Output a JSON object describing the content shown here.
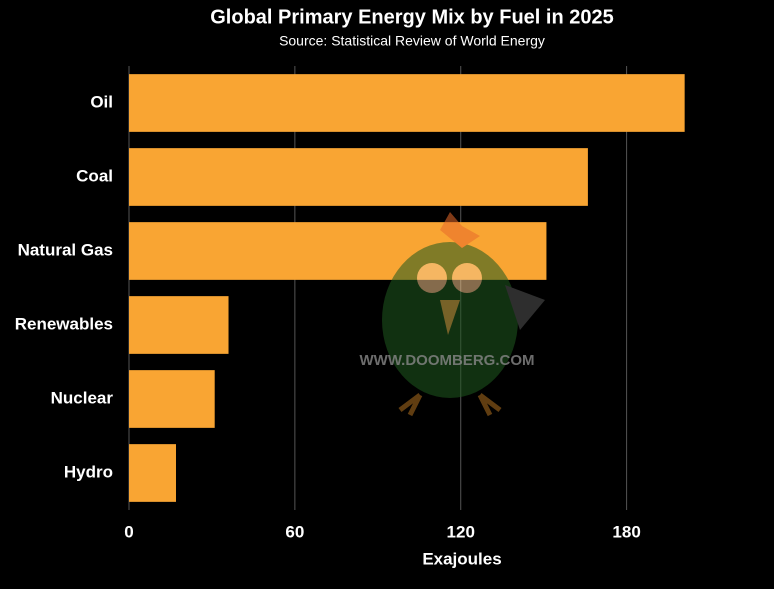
{
  "chart_data": {
    "type": "hbar",
    "title": "Global Primary Energy Mix by Fuel in 2025",
    "subtitle": "Source: Statistical Review of World Energy",
    "x_label": "Exajoules",
    "watermark": "WWW.DOOMBERG.COM",
    "categories": [
      "Oil",
      "Coal",
      "Natural Gas",
      "Renewables",
      "Nuclear",
      "Hydro"
    ],
    "values": [
      201,
      166,
      151,
      36,
      31,
      17
    ],
    "color": "#f9a533",
    "xlim": [
      0,
      225
    ],
    "xticks": [
      0,
      60,
      120,
      180
    ],
    "grid": true
  }
}
